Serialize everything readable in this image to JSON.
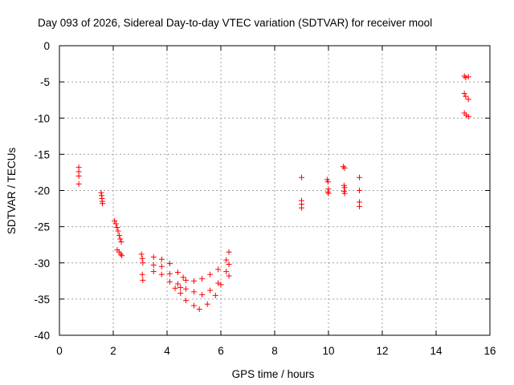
{
  "chart_data": {
    "type": "scatter",
    "title": "Day 093 of 2026, Sidereal Day-to-day VTEC variation (SDTVAR) for receiver mool",
    "xlabel": "GPS time / hours",
    "ylabel": "SDTVAR / TECUs",
    "xlim": [
      0,
      16
    ],
    "ylim": [
      -40,
      0
    ],
    "x_ticks": [
      0,
      2,
      4,
      6,
      8,
      10,
      12,
      14,
      16
    ],
    "x_tick_labels": [
      "0",
      "2",
      "4",
      "6",
      "8",
      "10",
      "12",
      "14",
      "16"
    ],
    "y_ticks": [
      0,
      -5,
      -10,
      -15,
      -20,
      -25,
      -30,
      -35,
      -40
    ],
    "y_tick_labels": [
      "0",
      "-5",
      "-10",
      "-15",
      "-20",
      "-25",
      "-30",
      "-35",
      "-40"
    ],
    "grid": true,
    "marker": "plus",
    "color": "#ff0000",
    "series": [
      {
        "name": "SDTVAR",
        "points": [
          [
            0.72,
            -16.8
          ],
          [
            0.72,
            -17.4
          ],
          [
            0.72,
            -18.0
          ],
          [
            0.72,
            -19.1
          ],
          [
            1.55,
            -20.3
          ],
          [
            1.57,
            -20.7
          ],
          [
            1.58,
            -21.1
          ],
          [
            1.59,
            -21.5
          ],
          [
            1.6,
            -21.8
          ],
          [
            2.05,
            -24.2
          ],
          [
            2.1,
            -24.6
          ],
          [
            2.14,
            -25.1
          ],
          [
            2.18,
            -25.6
          ],
          [
            2.22,
            -26.2
          ],
          [
            2.26,
            -26.7
          ],
          [
            2.3,
            -27.1
          ],
          [
            2.15,
            -28.2
          ],
          [
            2.22,
            -28.5
          ],
          [
            2.28,
            -28.8
          ],
          [
            2.32,
            -29.0
          ],
          [
            3.05,
            -28.8
          ],
          [
            3.08,
            -29.4
          ],
          [
            3.1,
            -30.0
          ],
          [
            3.08,
            -31.6
          ],
          [
            3.1,
            -32.4
          ],
          [
            3.5,
            -29.2
          ],
          [
            3.8,
            -29.5
          ],
          [
            4.1,
            -30.1
          ],
          [
            4.4,
            -31.3
          ],
          [
            4.6,
            -32.0
          ],
          [
            3.5,
            -30.3
          ],
          [
            3.8,
            -30.5
          ],
          [
            4.1,
            -31.5
          ],
          [
            4.4,
            -32.9
          ],
          [
            4.5,
            -33.4
          ],
          [
            3.5,
            -31.2
          ],
          [
            3.8,
            -31.6
          ],
          [
            4.1,
            -32.6
          ],
          [
            4.3,
            -33.5
          ],
          [
            4.5,
            -34.2
          ],
          [
            4.7,
            -32.4
          ],
          [
            5.0,
            -32.5
          ],
          [
            5.3,
            -32.2
          ],
          [
            5.6,
            -31.6
          ],
          [
            5.9,
            -30.9
          ],
          [
            6.2,
            -29.6
          ],
          [
            6.3,
            -28.5
          ],
          [
            4.7,
            -33.6
          ],
          [
            5.0,
            -34.0
          ],
          [
            5.3,
            -34.4
          ],
          [
            5.6,
            -33.8
          ],
          [
            5.9,
            -32.8
          ],
          [
            6.2,
            -31.2
          ],
          [
            6.3,
            -30.2
          ],
          [
            4.7,
            -35.2
          ],
          [
            5.0,
            -35.9
          ],
          [
            5.2,
            -36.4
          ],
          [
            5.5,
            -35.7
          ],
          [
            5.8,
            -34.5
          ],
          [
            6.0,
            -33.0
          ],
          [
            6.3,
            -31.8
          ],
          [
            9.0,
            -18.2
          ],
          [
            9.0,
            -21.4
          ],
          [
            9.0,
            -21.9
          ],
          [
            9.0,
            -22.4
          ],
          [
            9.95,
            -18.5
          ],
          [
            9.98,
            -18.8
          ],
          [
            10.0,
            -19.8
          ],
          [
            9.98,
            -20.2
          ],
          [
            10.0,
            -20.4
          ],
          [
            10.55,
            -16.7
          ],
          [
            10.6,
            -16.9
          ],
          [
            10.58,
            -19.3
          ],
          [
            10.6,
            -19.6
          ],
          [
            10.58,
            -20.1
          ],
          [
            10.6,
            -20.4
          ],
          [
            11.15,
            -18.2
          ],
          [
            11.15,
            -20.0
          ],
          [
            11.15,
            -21.6
          ],
          [
            11.15,
            -22.2
          ],
          [
            15.05,
            -4.2
          ],
          [
            15.1,
            -4.4
          ],
          [
            15.2,
            -4.3
          ],
          [
            15.05,
            -6.6
          ],
          [
            15.1,
            -7.0
          ],
          [
            15.2,
            -7.4
          ],
          [
            15.05,
            -9.3
          ],
          [
            15.12,
            -9.6
          ],
          [
            15.2,
            -9.8
          ]
        ]
      }
    ]
  }
}
